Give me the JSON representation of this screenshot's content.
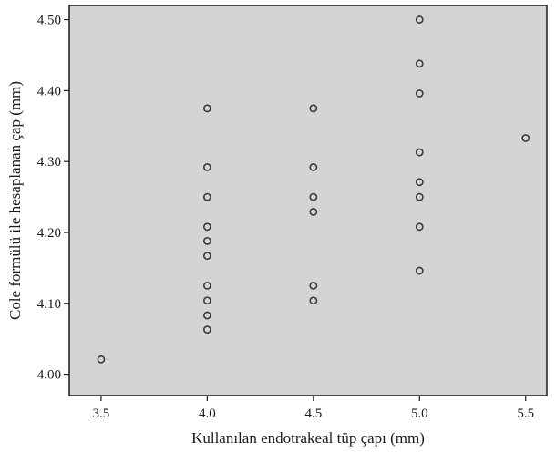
{
  "chart_data": {
    "type": "scatter",
    "xlabel": "Kullanılan endotrakeal tüp çapı (mm)",
    "ylabel": "Cole formülü ile hesaplanan çap (mm)",
    "xlim": [
      3.35,
      5.6
    ],
    "ylim": [
      3.97,
      4.52
    ],
    "x_ticks": [
      "3.5",
      "4.0",
      "4.5",
      "5.0",
      "5.5"
    ],
    "y_ticks": [
      "4.00",
      "4.10",
      "4.20",
      "4.30",
      "4.40",
      "4.50"
    ],
    "grid": false,
    "plot_background": "#d4d4d4",
    "marker": "open-circle",
    "points": [
      {
        "x": 3.5,
        "y": 4.021
      },
      {
        "x": 4.0,
        "y": 4.375
      },
      {
        "x": 4.0,
        "y": 4.292
      },
      {
        "x": 4.0,
        "y": 4.25
      },
      {
        "x": 4.0,
        "y": 4.208
      },
      {
        "x": 4.0,
        "y": 4.188
      },
      {
        "x": 4.0,
        "y": 4.167
      },
      {
        "x": 4.0,
        "y": 4.125
      },
      {
        "x": 4.0,
        "y": 4.104
      },
      {
        "x": 4.0,
        "y": 4.083
      },
      {
        "x": 4.0,
        "y": 4.063
      },
      {
        "x": 4.5,
        "y": 4.375
      },
      {
        "x": 4.5,
        "y": 4.292
      },
      {
        "x": 4.5,
        "y": 4.25
      },
      {
        "x": 4.5,
        "y": 4.229
      },
      {
        "x": 4.5,
        "y": 4.125
      },
      {
        "x": 4.5,
        "y": 4.104
      },
      {
        "x": 5.0,
        "y": 4.5
      },
      {
        "x": 5.0,
        "y": 4.438
      },
      {
        "x": 5.0,
        "y": 4.396
      },
      {
        "x": 5.0,
        "y": 4.313
      },
      {
        "x": 5.0,
        "y": 4.271
      },
      {
        "x": 5.0,
        "y": 4.25
      },
      {
        "x": 5.0,
        "y": 4.208
      },
      {
        "x": 5.0,
        "y": 4.146
      },
      {
        "x": 5.5,
        "y": 4.333
      }
    ]
  }
}
